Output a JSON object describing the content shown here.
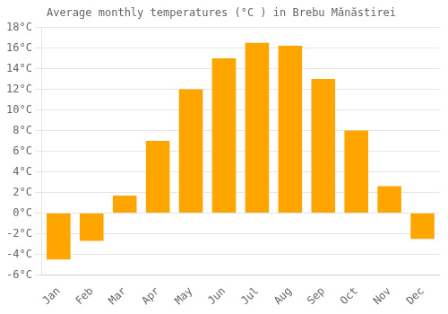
{
  "chart_data": {
    "type": "bar",
    "title": "Average monthly temperatures (°C ) in Brebu Mănăstirei",
    "categories": [
      "Jan",
      "Feb",
      "Mar",
      "Apr",
      "May",
      "Jun",
      "Jul",
      "Aug",
      "Sep",
      "Oct",
      "Nov",
      "Dec"
    ],
    "values": [
      -4.5,
      -2.7,
      1.7,
      7.0,
      12.0,
      15.0,
      16.5,
      16.2,
      13.0,
      8.0,
      2.6,
      -2.5
    ],
    "color": "#FFA500",
    "ylim": [
      -6,
      18
    ],
    "yticks": [
      {
        "value": -6,
        "label": "-6°C"
      },
      {
        "value": -4,
        "label": "-4°C"
      },
      {
        "value": -2,
        "label": "-2°C"
      },
      {
        "value": 0,
        "label": "0°C"
      },
      {
        "value": 2,
        "label": "2°C"
      },
      {
        "value": 4,
        "label": "4°C"
      },
      {
        "value": 6,
        "label": "6°C"
      },
      {
        "value": 8,
        "label": "8°C"
      },
      {
        "value": 10,
        "label": "10°C"
      },
      {
        "value": 12,
        "label": "12°C"
      },
      {
        "value": 14,
        "label": "14°C"
      },
      {
        "value": 16,
        "label": "16°C"
      },
      {
        "value": 18,
        "label": "18°C"
      }
    ],
    "grid": true
  }
}
